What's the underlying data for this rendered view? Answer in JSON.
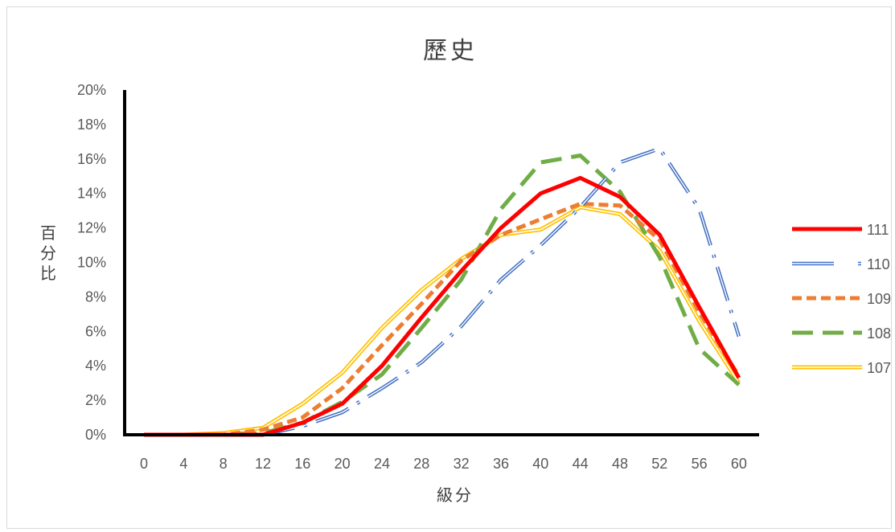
{
  "chart_data": {
    "type": "line",
    "title": "歷史",
    "xlabel": "級分",
    "ylabel": "百分比",
    "x": [
      0,
      4,
      8,
      12,
      16,
      20,
      24,
      28,
      32,
      36,
      40,
      44,
      48,
      52,
      56,
      60
    ],
    "x_tick_labels": [
      "0",
      "4",
      "8",
      "12",
      "16",
      "20",
      "24",
      "28",
      "32",
      "36",
      "40",
      "44",
      "48",
      "52",
      "56",
      "60"
    ],
    "ylim": [
      0,
      0.2
    ],
    "y_tick_values": [
      0,
      0.02,
      0.04,
      0.06,
      0.08,
      0.1,
      0.12,
      0.14,
      0.16,
      0.18,
      0.2
    ],
    "y_tick_labels": [
      "0%",
      "2%",
      "4%",
      "6%",
      "8%",
      "10%",
      "12%",
      "14%",
      "16%",
      "18%",
      "20%"
    ],
    "grid": false,
    "legend_position": "right",
    "series": [
      {
        "name": "111",
        "color": "#ff0000",
        "style": "solid-thick",
        "values": [
          0.0,
          0.0,
          0.0,
          0.0,
          0.007,
          0.018,
          0.04,
          0.068,
          0.095,
          0.12,
          0.14,
          0.149,
          0.138,
          0.116,
          0.074,
          0.033
        ]
      },
      {
        "name": "110",
        "color": "#4472c4",
        "style": "double-dashdot",
        "values": [
          0.0,
          0.0,
          0.0,
          0.0,
          0.005,
          0.013,
          0.027,
          0.042,
          0.063,
          0.09,
          0.11,
          0.132,
          0.158,
          0.166,
          0.131,
          0.057
        ]
      },
      {
        "name": "109",
        "color": "#ed7d31",
        "style": "dashed",
        "values": [
          0.0,
          0.0,
          0.0,
          0.003,
          0.01,
          0.027,
          0.052,
          0.076,
          0.101,
          0.116,
          0.125,
          0.134,
          0.133,
          0.113,
          0.071,
          0.034
        ]
      },
      {
        "name": "108",
        "color": "#70ad47",
        "style": "long-dash",
        "values": [
          0.0,
          0.0,
          0.0,
          0.001,
          0.007,
          0.019,
          0.035,
          0.062,
          0.09,
          0.131,
          0.158,
          0.162,
          0.141,
          0.103,
          0.05,
          0.029
        ]
      },
      {
        "name": "107",
        "color": "#ffc000",
        "style": "double",
        "values": [
          0.0,
          0.0,
          0.001,
          0.004,
          0.018,
          0.036,
          0.062,
          0.084,
          0.102,
          0.116,
          0.119,
          0.132,
          0.128,
          0.107,
          0.066,
          0.03
        ]
      }
    ]
  }
}
